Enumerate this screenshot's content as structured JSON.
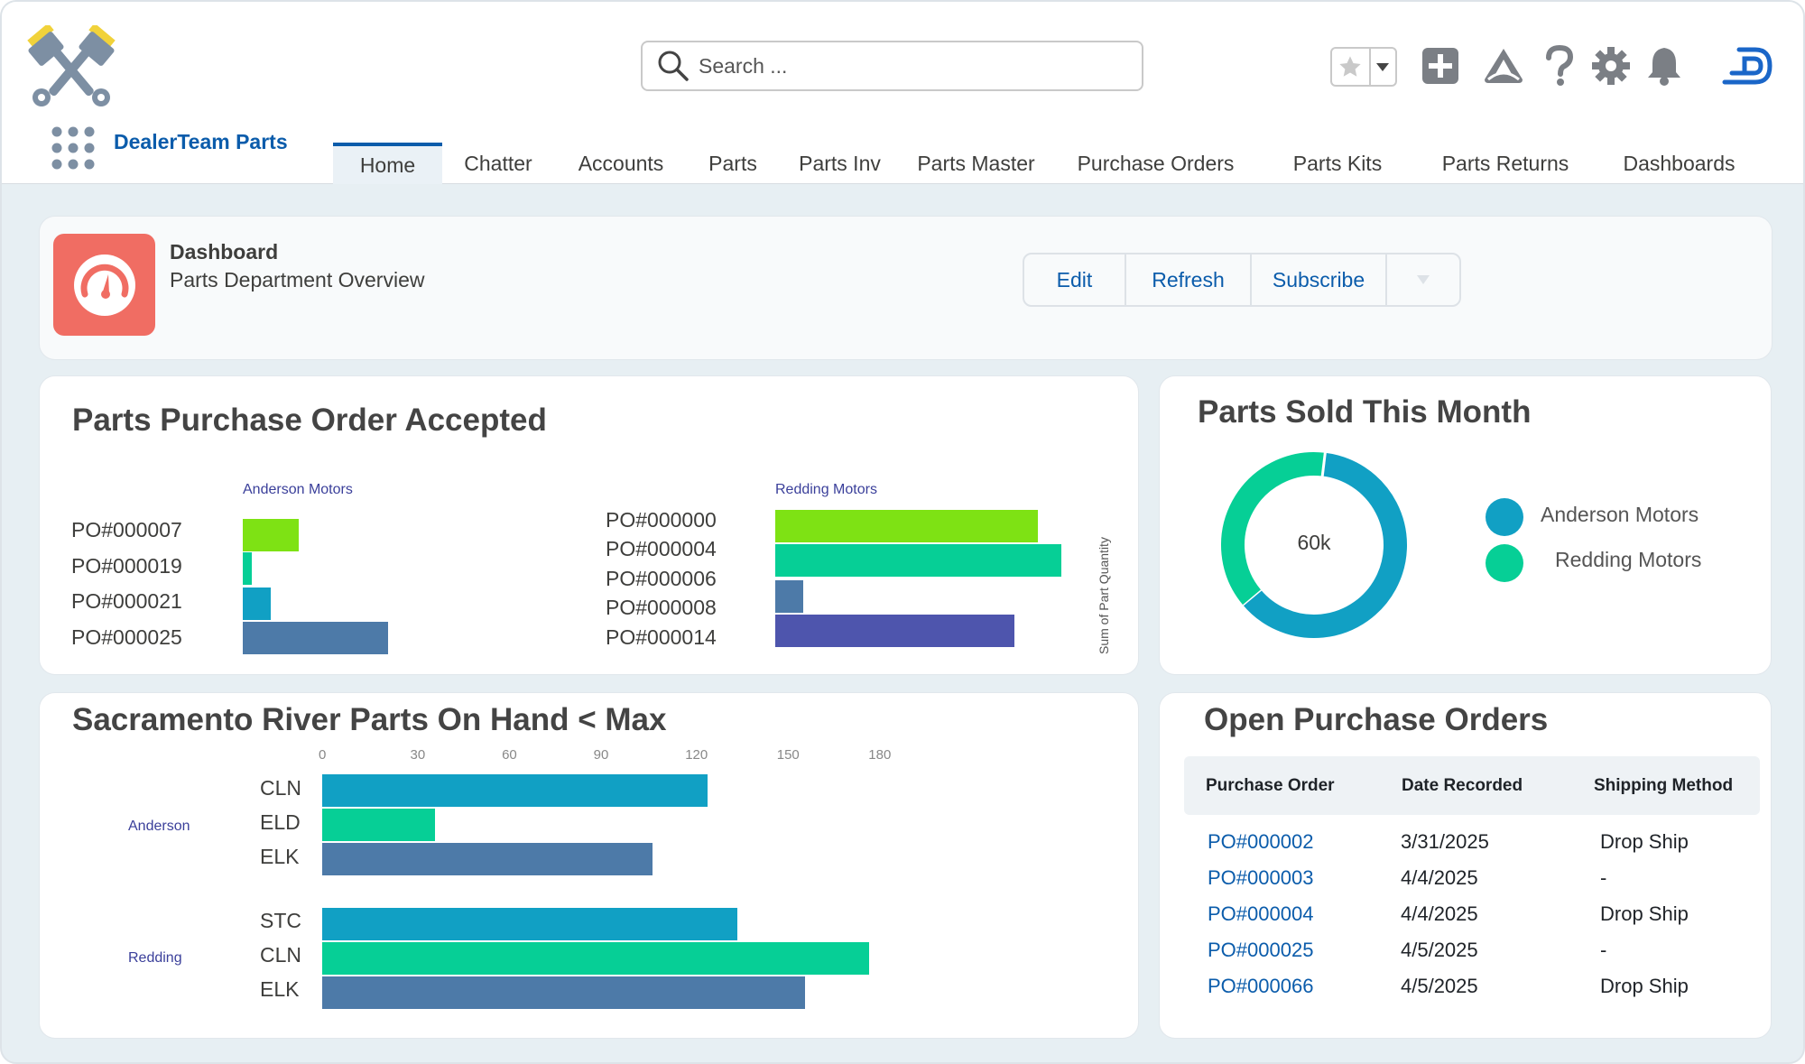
{
  "app": {
    "name": "DealerTeam Parts",
    "logo_icon": "crossed-pistons-logo",
    "launcher_icon": "app-launcher-grid-icon"
  },
  "search": {
    "placeholder": "Search ..."
  },
  "header_icons": [
    "favorites-star-icon",
    "add-icon",
    "trailhead-icon",
    "help-icon",
    "setup-gear-icon",
    "notifications-bell-icon",
    "user-avatar-icon"
  ],
  "nav": {
    "tabs": [
      "Home",
      "Chatter",
      "Accounts",
      "Parts",
      "Parts Inv",
      "Parts Master",
      "Purchase Orders",
      "Parts Kits",
      "Parts Returns",
      "Dashboards"
    ],
    "active": "Home"
  },
  "dashboard": {
    "label": "Dashboard",
    "title": "Parts Department Overview",
    "buttons": [
      "Edit",
      "Refresh",
      "Subscribe"
    ],
    "icon": "gauge-icon"
  },
  "colors": {
    "lime": "#7ee214",
    "teal_green": "#06cf96",
    "cyan": "#11a0c4",
    "steel_blue": "#4d7aa8",
    "indigo": "#4e55ad",
    "link": "#0b5cab",
    "dashboard_icon_bg": "#f06d63"
  },
  "po_accepted": {
    "title": "Parts Purchase Order Accepted",
    "axis_label": "Sum of Part Quantity",
    "chart_data": [
      {
        "type": "bar",
        "orientation": "horizontal",
        "group": "Anderson Motors",
        "categories": [
          "PO#000007",
          "PO#000019",
          "PO#000021",
          "PO#000025"
        ],
        "values": [
          12,
          2,
          6,
          31
        ],
        "colors": [
          "#7ee214",
          "#06cf96",
          "#11a0c4",
          "#4d7aa8"
        ]
      },
      {
        "type": "bar",
        "orientation": "horizontal",
        "group": "Redding Motors",
        "categories": [
          "PO#000000",
          "PO#000004",
          "PO#000006",
          "PO#000008",
          "PO#000014"
        ],
        "values": [
          56,
          61,
          6,
          null,
          51
        ],
        "colors": [
          "#7ee214",
          "#06cf96",
          "#4d7aa8",
          "",
          "#4e55ad"
        ]
      }
    ]
  },
  "parts_sold": {
    "title": "Parts Sold This Month",
    "center_label": "60k",
    "chart_data": {
      "type": "pie",
      "style": "donut",
      "total_label": "60k",
      "slices": [
        {
          "name": "Anderson Motors",
          "share": 0.62,
          "color": "#11a0c4"
        },
        {
          "name": "Redding Motors",
          "share": 0.38,
          "color": "#06cf96"
        }
      ],
      "legend_placement": "right"
    }
  },
  "on_hand": {
    "title": "Sacramento River Parts On Hand < Max",
    "chart_data": {
      "type": "bar",
      "orientation": "horizontal",
      "xlim": [
        0,
        180
      ],
      "ticks": [
        "0",
        "30",
        "60",
        "90",
        "120",
        "150",
        "180"
      ],
      "groups": [
        {
          "name": "Anderson",
          "categories": [
            "CLN",
            "ELD",
            "ELK"
          ],
          "values": [
            126,
            37,
            108
          ],
          "colors": [
            "#11a0c4",
            "#06cf96",
            "#4d7aa8"
          ]
        },
        {
          "name": "Redding",
          "categories": [
            "STC",
            "CLN",
            "ELK"
          ],
          "values": [
            136,
            179,
            158
          ],
          "colors": [
            "#11a0c4",
            "#06cf96",
            "#4d7aa8"
          ]
        }
      ]
    }
  },
  "open_pos": {
    "title": "Open Purchase Orders",
    "columns": [
      "Purchase Order",
      "Date Recorded",
      "Shipping Method"
    ],
    "rows": [
      [
        "PO#000002",
        "3/31/2025",
        "Drop Ship"
      ],
      [
        "PO#000003",
        "4/4/2025",
        "-"
      ],
      [
        "PO#000004",
        "4/4/2025",
        "Drop Ship"
      ],
      [
        "PO#000025",
        "4/5/2025",
        "-"
      ],
      [
        "PO#000066",
        "4/5/2025",
        "Drop Ship"
      ]
    ]
  }
}
